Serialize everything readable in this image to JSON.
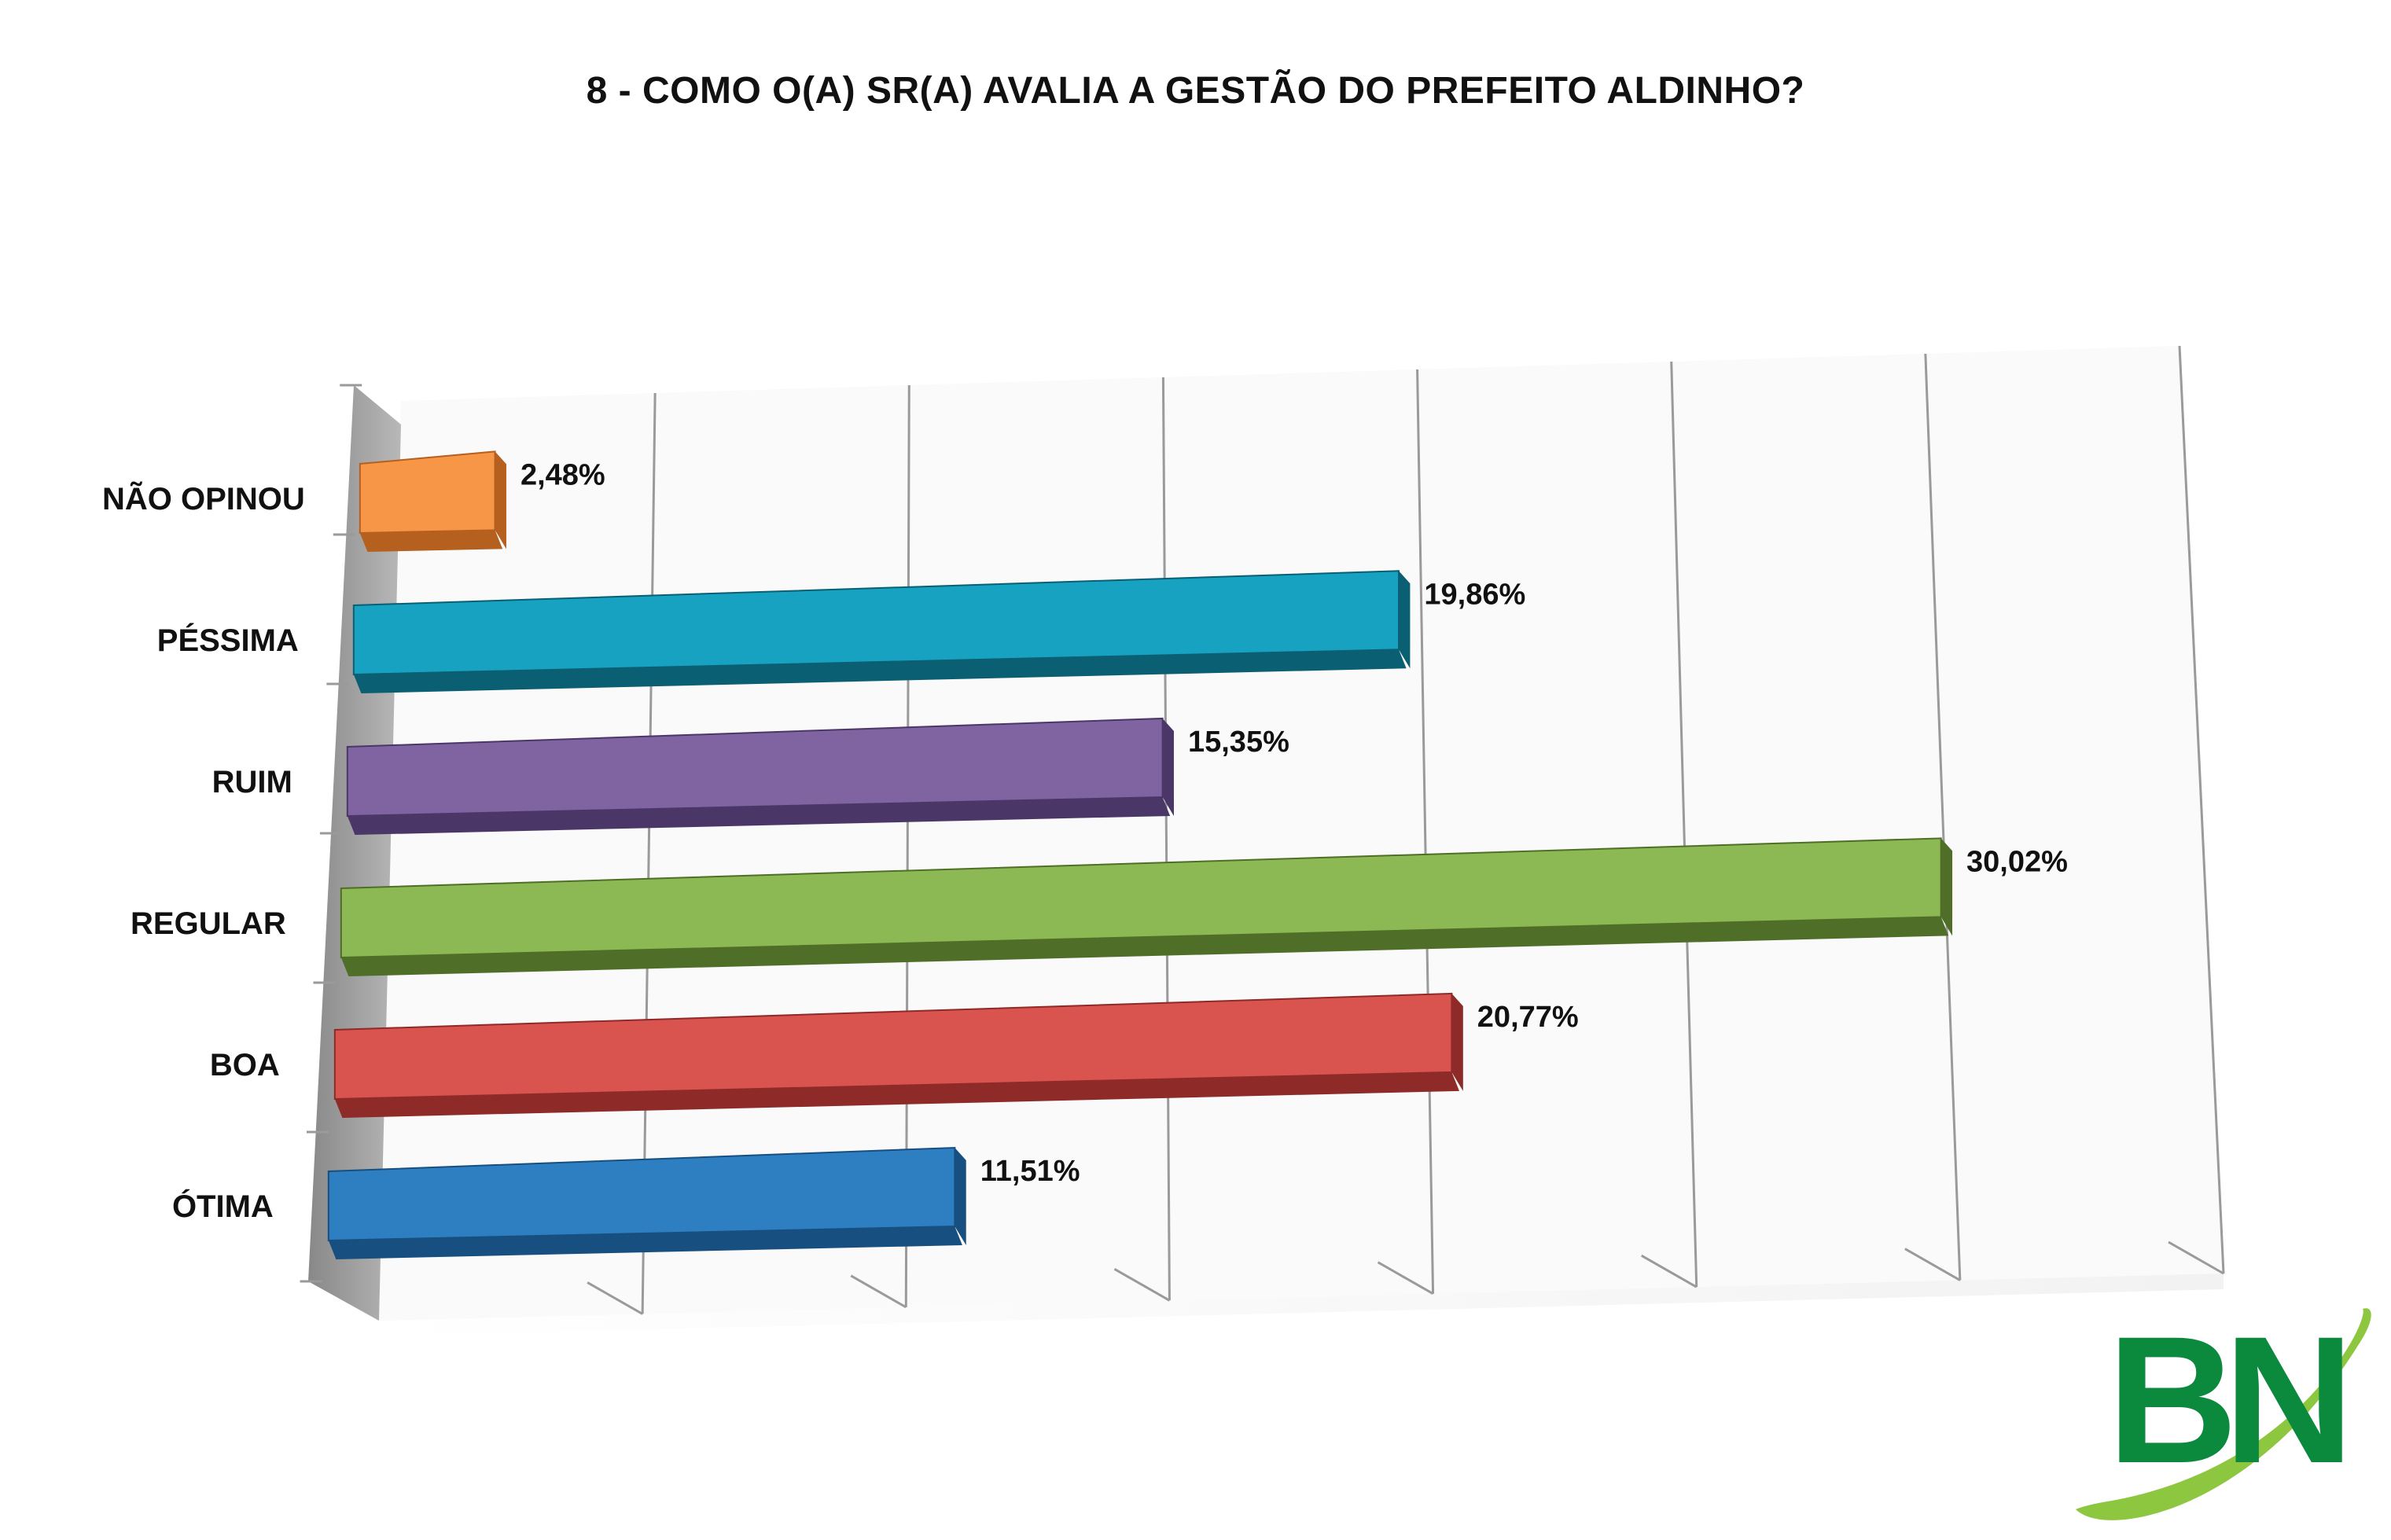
{
  "chart_data": {
    "type": "bar",
    "orientation": "horizontal",
    "title": "8 - COMO O(A) SR(A) AVALIA A GESTÃO DO PREFEITO ALDINHO?",
    "xlabel": "",
    "ylabel": "",
    "xlim": [
      0,
      35
    ],
    "grid": true,
    "legend": "none",
    "categories": [
      "NÃO OPINOU",
      "PÉSSIMA",
      "RUIM",
      "REGULAR",
      "BOA",
      "ÓTIMA"
    ],
    "values": [
      2.48,
      19.86,
      15.35,
      30.02,
      20.77,
      11.51
    ],
    "value_labels": [
      "2,48%",
      "19,86%",
      "15,35%",
      "30,02%",
      "20,77%",
      "11,51%"
    ],
    "colors": [
      "#F79646",
      "#17A2C2",
      "#8064A2",
      "#8DB955",
      "#D9534F",
      "#2E7FC1"
    ],
    "dark_colors": [
      "#B5601F",
      "#0A5F73",
      "#4A3768",
      "#4F6E27",
      "#8E2A28",
      "#174F80"
    ]
  },
  "logo": {
    "text": "BN",
    "green": "#0B8A3E",
    "swoosh": "#8DC63F"
  }
}
